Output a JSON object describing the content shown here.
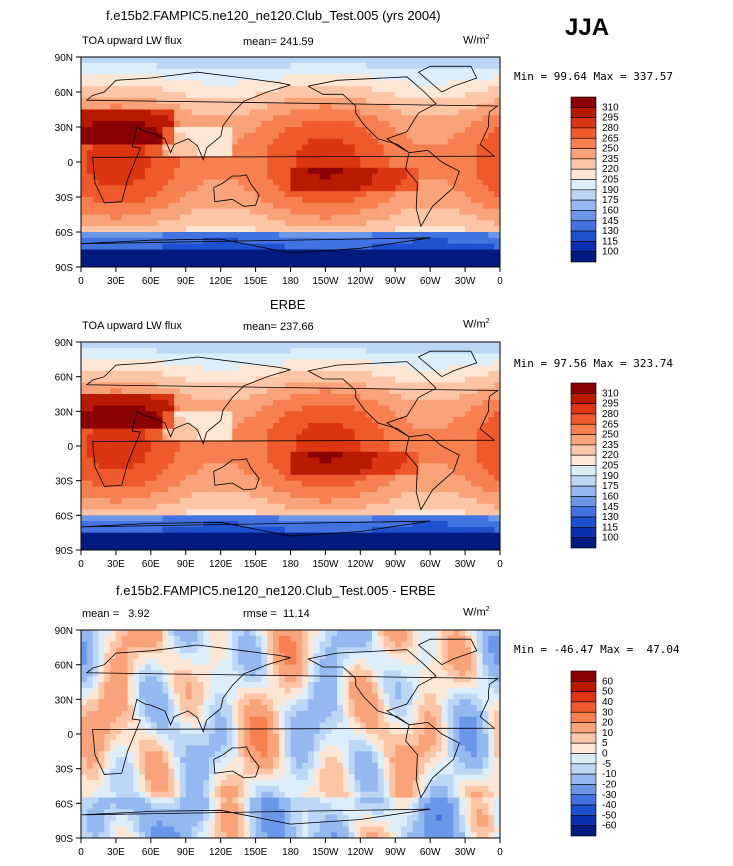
{
  "season": "JJA",
  "units": "W/m",
  "units_sup": "2",
  "panels": [
    {
      "title": "f.e15b2.FAMPIC5.ne120_ne120.Club_Test.005 (yrs 2004)",
      "left_label": "TOA upward LW flux",
      "center_label": "mean= 241.59",
      "minmax": "Min =  99.64 Max = 337.57"
    },
    {
      "title": "ERBE",
      "left_label": "TOA upward LW flux",
      "center_label": "mean= 237.66",
      "minmax": "Min =  97.56 Max = 323.74"
    },
    {
      "title": "f.e15b2.FAMPIC5.ne120_ne120.Club_Test.005 - ERBE",
      "left_label": "mean =   3.92",
      "center_label": "rmse =  11.14",
      "minmax": "Min = -46.47 Max =  47.04"
    }
  ],
  "chart_data": [
    {
      "type": "heatmap",
      "title": "f.e15b2.FAMPIC5.ne120_ne120.Club_Test.005 (yrs 2004)",
      "variable": "TOA upward LW flux",
      "units": "W/m2",
      "mean": 241.59,
      "min": 99.64,
      "max": 337.57,
      "x_ticks": [
        "0",
        "30E",
        "60E",
        "90E",
        "120E",
        "150E",
        "180",
        "150W",
        "120W",
        "90W",
        "60W",
        "30W",
        "0"
      ],
      "y_ticks": [
        "90N",
        "60N",
        "30N",
        "0",
        "30S",
        "60S",
        "90S"
      ],
      "xlim": [
        0,
        360
      ],
      "ylim": [
        -90,
        90
      ],
      "colorbar_levels": [
        310,
        295,
        280,
        265,
        250,
        235,
        220,
        205,
        190,
        175,
        160,
        145,
        130,
        115,
        100
      ],
      "colorbar_colors": [
        "#8b0000",
        "#b81a00",
        "#db3511",
        "#ee5a2c",
        "#f6804f",
        "#f9a37a",
        "#fcc6a6",
        "#fde6d4",
        "#ddeefb",
        "#bcd6f6",
        "#94b8f0",
        "#6b97e8",
        "#4273e0",
        "#1f50cf",
        "#0a2fb0",
        "#001b80"
      ]
    },
    {
      "type": "heatmap",
      "title": "ERBE",
      "variable": "TOA upward LW flux",
      "units": "W/m2",
      "mean": 237.66,
      "min": 97.56,
      "max": 323.74,
      "x_ticks": [
        "0",
        "30E",
        "60E",
        "90E",
        "120E",
        "150E",
        "180",
        "150W",
        "120W",
        "90W",
        "60W",
        "30W",
        "0"
      ],
      "y_ticks": [
        "90N",
        "60N",
        "30N",
        "0",
        "30S",
        "60S",
        "90S"
      ],
      "xlim": [
        0,
        360
      ],
      "ylim": [
        -90,
        90
      ],
      "colorbar_levels": [
        310,
        295,
        280,
        265,
        250,
        235,
        220,
        205,
        190,
        175,
        160,
        145,
        130,
        115,
        100
      ],
      "colorbar_colors": [
        "#8b0000",
        "#b81a00",
        "#db3511",
        "#ee5a2c",
        "#f6804f",
        "#f9a37a",
        "#fcc6a6",
        "#fde6d4",
        "#ddeefb",
        "#bcd6f6",
        "#94b8f0",
        "#6b97e8",
        "#4273e0",
        "#1f50cf",
        "#0a2fb0",
        "#001b80"
      ]
    },
    {
      "type": "heatmap",
      "title": "f.e15b2.FAMPIC5.ne120_ne120.Club_Test.005 - ERBE",
      "units": "W/m2",
      "mean": 3.92,
      "rmse": 11.14,
      "min": -46.47,
      "max": 47.04,
      "x_ticks": [
        "0",
        "30E",
        "60E",
        "90E",
        "120E",
        "150E",
        "180",
        "150W",
        "120W",
        "90W",
        "60W",
        "30W",
        "0"
      ],
      "y_ticks": [
        "90N",
        "60N",
        "30N",
        "0",
        "30S",
        "60S",
        "90S"
      ],
      "xlim": [
        0,
        360
      ],
      "ylim": [
        -90,
        90
      ],
      "colorbar_levels": [
        60,
        50,
        40,
        30,
        20,
        10,
        5,
        0,
        -5,
        -10,
        -20,
        -30,
        -40,
        -50,
        -60
      ],
      "colorbar_colors": [
        "#8b0000",
        "#b81a00",
        "#db3511",
        "#ee5a2c",
        "#f6804f",
        "#f9a37a",
        "#fcc6a6",
        "#fde6d4",
        "#ddeefb",
        "#bcd6f6",
        "#94b8f0",
        "#6b97e8",
        "#4273e0",
        "#1f50cf",
        "#0a2fb0",
        "#001b80"
      ]
    }
  ]
}
